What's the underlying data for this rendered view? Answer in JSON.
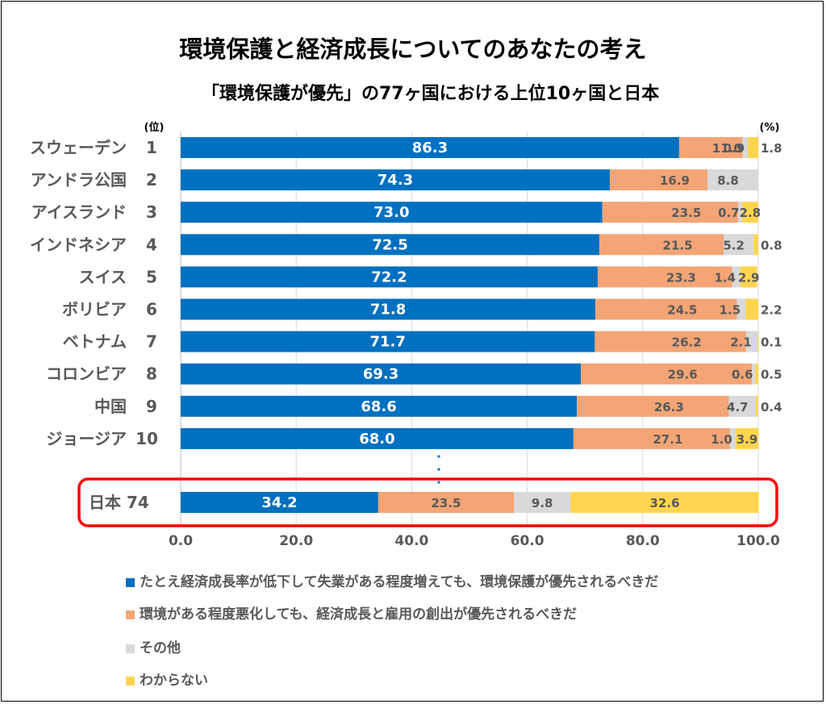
{
  "title": "環境保護と経済成長についてのあなたの考え",
  "subtitle": "「環境保護が優先」の77ヶ国における上位10ヶ国と日本",
  "colors": {
    "environment": "#0070C0",
    "economy": "#F4A575",
    "other": "#D9D9D9",
    "unknown": "#FFD54F",
    "highlight": "#FF0000",
    "label_dark": "#595959"
  },
  "chart_data": {
    "type": "bar",
    "orientation": "horizontal",
    "stacked": true,
    "rank_header": "(位)",
    "unit_header": "(%)",
    "categories": [
      "スウェーデン",
      "アンドラ公国",
      "アイスランド",
      "インドネシア",
      "スイス",
      "ボリビア",
      "ベトナム",
      "コロンビア",
      "中国",
      "ジョージア",
      "日本"
    ],
    "ranks": [
      "1",
      "2",
      "3",
      "4",
      "5",
      "6",
      "7",
      "8",
      "9",
      "10",
      "74"
    ],
    "series": [
      {
        "name": "たとえ経済成長率が低下して失業がある程度増えても、環境保護が優先されるべきだ",
        "values": [
          86.3,
          74.3,
          73.0,
          72.5,
          72.2,
          71.8,
          71.7,
          69.3,
          68.6,
          68.0,
          34.2
        ]
      },
      {
        "name": "環境がある程度悪化しても、経済成長と雇用の創出が優先されるべきだ",
        "values": [
          11.0,
          16.9,
          23.5,
          21.5,
          23.3,
          24.5,
          26.2,
          29.6,
          26.3,
          27.1,
          23.5
        ]
      },
      {
        "name": "その他",
        "values": [
          0.9,
          8.8,
          0.7,
          5.2,
          1.4,
          1.5,
          2.1,
          0.6,
          4.7,
          1.0,
          9.8
        ]
      },
      {
        "name": "わからない",
        "values": [
          1.8,
          null,
          2.8,
          0.8,
          2.9,
          2.2,
          0.1,
          0.5,
          0.4,
          3.9,
          32.6
        ]
      }
    ],
    "xlim": [
      0,
      100
    ],
    "xticks": [
      "0.0",
      "20.0",
      "40.0",
      "60.0",
      "80.0",
      "100.0"
    ],
    "gap_marker": "⋮",
    "highlighted_category": "日本",
    "grid": true,
    "legend_position": "bottom"
  }
}
